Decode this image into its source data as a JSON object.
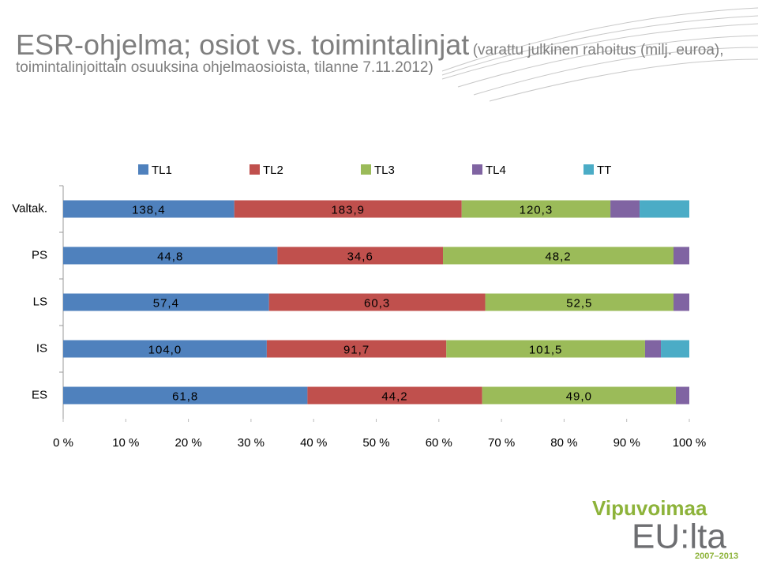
{
  "chart_data": {
    "type": "stacked_bar_100",
    "title": "ESR-ohjelma; osiot vs. toimintalinjat",
    "subtitle": "(varattu julkinen rahoitus (milj. euroa), toimintalinjoittain osuuksina ohjelmaosioista, tilanne 7.11.2012)",
    "categories": [
      "Valtak.",
      "PS",
      "LS",
      "IS",
      "ES"
    ],
    "series": [
      {
        "name": "TL1",
        "color": "#4f81bd",
        "values": [
          138.4,
          44.8,
          57.4,
          104.0,
          61.8
        ],
        "value_labels": [
          "138,4",
          "44,8",
          "57,4",
          "104,0",
          "61,8"
        ]
      },
      {
        "name": "TL2",
        "color": "#c0504d",
        "values": [
          183.9,
          34.6,
          60.3,
          91.7,
          44.2
        ],
        "value_labels": [
          "183,9",
          "34,6",
          "60,3",
          "91,7",
          "44,2"
        ]
      },
      {
        "name": "TL3",
        "color": "#9bbb59",
        "values": [
          120.3,
          48.2,
          52.5,
          101.5,
          49.0
        ],
        "value_labels": [
          "120,3",
          "48,2",
          "52,5",
          "101,5",
          "49,0"
        ]
      },
      {
        "name": "TL4",
        "color": "#8064a2",
        "values": [
          23.6,
          3.3,
          4.4,
          8.1,
          3.4
        ]
      },
      {
        "name": "TT",
        "color": "#4bacc6",
        "values": [
          40.2,
          0,
          0,
          14.5,
          0
        ]
      }
    ],
    "xlim": [
      0,
      100
    ],
    "xticks": [
      {
        "value": 0,
        "label": "0 %"
      },
      {
        "value": 10,
        "label": "10 %"
      },
      {
        "value": 20,
        "label": "20 %"
      },
      {
        "value": 30,
        "label": "30 %"
      },
      {
        "value": 40,
        "label": "40 %"
      },
      {
        "value": 50,
        "label": "50 %"
      },
      {
        "value": 60,
        "label": "60 %"
      },
      {
        "value": 70,
        "label": "70 %"
      },
      {
        "value": 80,
        "label": "80 %"
      },
      {
        "value": 90,
        "label": "90 %"
      },
      {
        "value": 100,
        "label": "100 %"
      }
    ],
    "legend": "top"
  },
  "logo": {
    "name": "Vipuvoimaa",
    "sub": "EU:lta",
    "years": "2007–2013"
  }
}
